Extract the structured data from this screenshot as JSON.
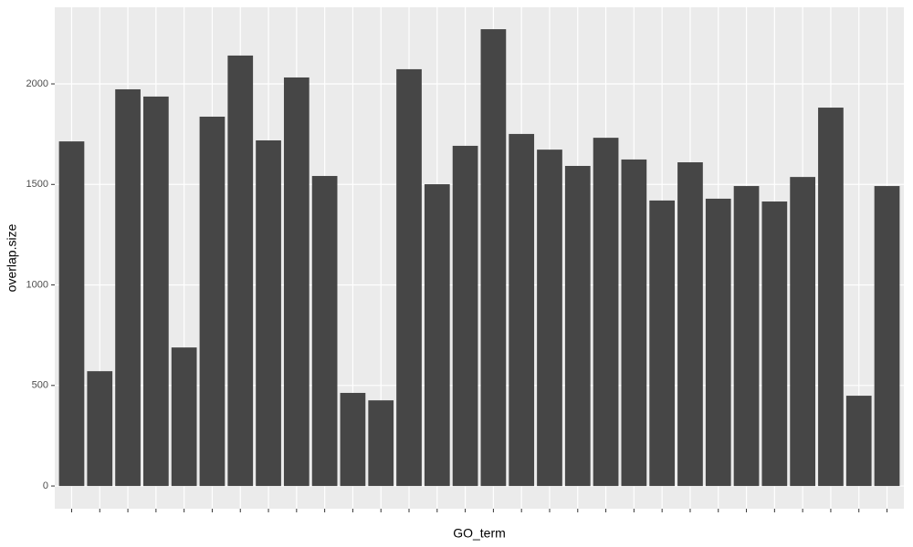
{
  "chart_data": {
    "type": "bar",
    "x_label": "GO_term",
    "y_label": "overlap.size",
    "categories": [
      null,
      null,
      null,
      null,
      null,
      null,
      null,
      null,
      null,
      null,
      null,
      null,
      null,
      null,
      null,
      null,
      null,
      null,
      null,
      null,
      null,
      null,
      null,
      null,
      null,
      null,
      null,
      null,
      null,
      null
    ],
    "values": [
      1714,
      571,
      1973,
      1937,
      689,
      1837,
      2141,
      1719,
      2032,
      1542,
      463,
      426,
      2073,
      1501,
      1692,
      2272,
      1751,
      1673,
      1592,
      1732,
      1624,
      1420,
      1610,
      1429,
      1492,
      1415,
      1537,
      1882,
      449,
      1492
    ],
    "color": "#464646",
    "ylim": [
      -113,
      2381
    ],
    "yticks": [
      0,
      500,
      1000,
      1500,
      2000
    ],
    "grid": true
  }
}
